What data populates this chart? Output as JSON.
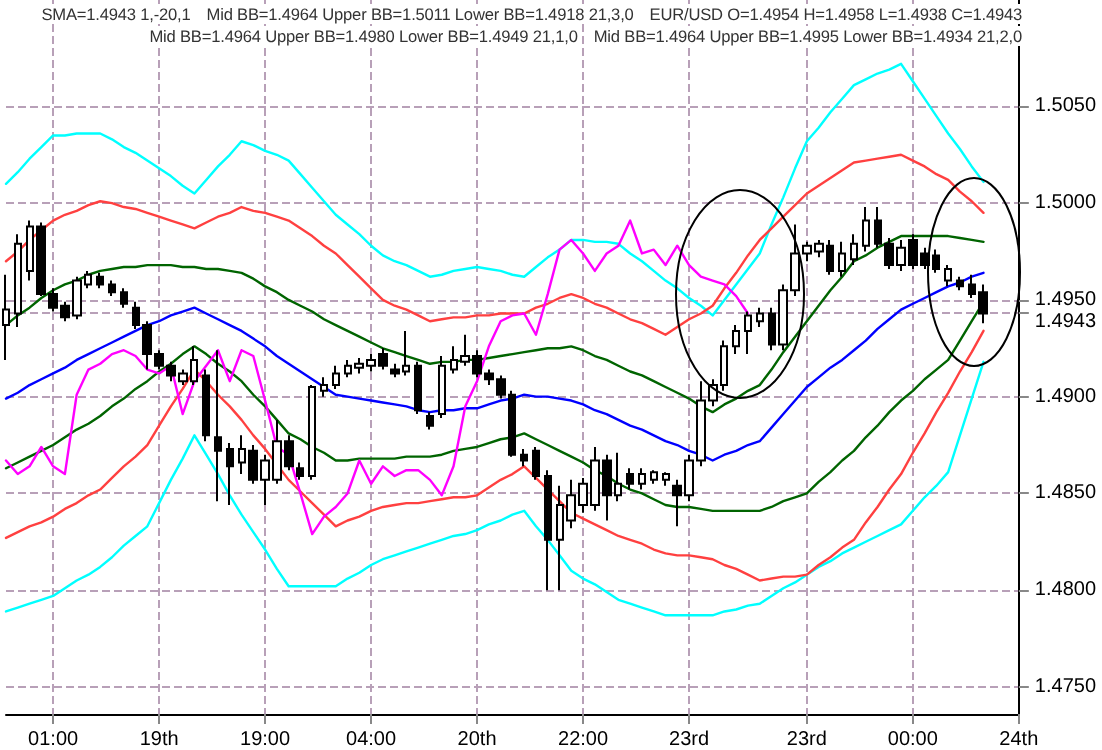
{
  "chart_data": {
    "type": "candlestick",
    "annotations": [
      "SMA=1.4943  1,-20,1",
      "Mid BB=1.4964 Upper BB=1.5011 Lower BB=1.4918  21,3,0",
      "EUR/USD O=1.4954 H=1.4958 L=1.4938 C=1.4943",
      "Mid BB=1.4964 Upper BB=1.4980 Lower BB=1.4949  21,1,0",
      "Mid BB=1.4964 Upper BB=1.4995 Lower BB=1.4934  21,2,0"
    ],
    "categories": [
      null,
      null,
      null,
      null,
      "01:00",
      null,
      null,
      null,
      null,
      null,
      null,
      null,
      null,
      "19th",
      null,
      null,
      null,
      null,
      null,
      null,
      null,
      null,
      "19:00",
      null,
      null,
      null,
      null,
      null,
      null,
      null,
      null,
      "04:00",
      null,
      null,
      null,
      null,
      null,
      null,
      null,
      null,
      "20th",
      null,
      null,
      null,
      null,
      null,
      null,
      null,
      null,
      "22:00",
      null,
      null,
      null,
      null,
      null,
      null,
      null,
      null,
      "23rd",
      null,
      null,
      null,
      null,
      null,
      null,
      null,
      null,
      null,
      "23rd",
      null,
      null,
      null,
      null,
      null,
      null,
      null,
      null,
      "00:00",
      null,
      null,
      null,
      null,
      null,
      null,
      null,
      null,
      "24th"
    ],
    "ohlc": [
      [
        1.4937,
        1.4963,
        1.4919,
        1.4945
      ],
      [
        1.4943,
        1.4984,
        1.4936,
        1.4979
      ],
      [
        1.4965,
        1.4991,
        1.496,
        1.4988
      ],
      [
        1.4988,
        1.499,
        1.4952,
        1.4953
      ],
      [
        1.4953,
        1.4956,
        1.4944,
        1.4946
      ],
      [
        1.4947,
        1.4949,
        1.4939,
        1.4941
      ],
      [
        1.4942,
        1.4962,
        1.494,
        1.496
      ],
      [
        1.4958,
        1.4965,
        1.4956,
        1.4963
      ],
      [
        1.4962,
        1.4964,
        1.4956,
        1.4958
      ],
      [
        1.4958,
        1.496,
        1.4952,
        1.4954
      ],
      [
        1.4954,
        1.4956,
        1.4946,
        1.4948
      ],
      [
        1.4946,
        1.4949,
        1.4935,
        1.4937
      ],
      [
        1.4937,
        1.4939,
        1.4914,
        1.4922
      ],
      [
        1.4922,
        1.4924,
        1.4914,
        1.4916
      ],
      [
        1.4916,
        1.4918,
        1.4908,
        1.4911
      ],
      [
        1.4908,
        1.4914,
        1.4906,
        1.4912
      ],
      [
        1.4908,
        1.4926,
        1.4906,
        1.4919
      ],
      [
        1.4911,
        1.4914,
        1.4877,
        1.488
      ],
      [
        1.4879,
        1.4924,
        1.4846,
        1.4872
      ],
      [
        1.4873,
        1.4876,
        1.4844,
        1.4864
      ],
      [
        1.4866,
        1.488,
        1.486,
        1.4873
      ],
      [
        1.4872,
        1.4875,
        1.4855,
        1.4857
      ],
      [
        1.4857,
        1.487,
        1.4844,
        1.4867
      ],
      [
        1.4857,
        1.4888,
        1.4855,
        1.4877
      ],
      [
        1.4877,
        1.488,
        1.4862,
        1.4864
      ],
      [
        1.4863,
        1.4866,
        1.4857,
        1.4859
      ],
      [
        1.4859,
        1.4906,
        1.4857,
        1.4905
      ],
      [
        1.4903,
        1.491,
        1.49,
        1.4906
      ],
      [
        1.4906,
        1.4916,
        1.4904,
        1.4912
      ],
      [
        1.4912,
        1.4919,
        1.491,
        1.4916
      ],
      [
        1.4915,
        1.492,
        1.4912,
        1.4917
      ],
      [
        1.4916,
        1.4922,
        1.4913,
        1.4919
      ],
      [
        1.4922,
        1.4925,
        1.4914,
        1.4916
      ],
      [
        1.4914,
        1.4917,
        1.491,
        1.4912
      ],
      [
        1.4913,
        1.4934,
        1.4911,
        1.4916
      ],
      [
        1.4916,
        1.4918,
        1.4891,
        1.4893
      ],
      [
        1.489,
        1.4892,
        1.4883,
        1.4885
      ],
      [
        1.4891,
        1.4921,
        1.4889,
        1.4916
      ],
      [
        1.4914,
        1.4926,
        1.4912,
        1.4919
      ],
      [
        1.4918,
        1.4932,
        1.4916,
        1.4921
      ],
      [
        1.4921,
        1.4924,
        1.491,
        1.4912
      ],
      [
        1.4912,
        1.4914,
        1.4906,
        1.4909
      ],
      [
        1.4909,
        1.4911,
        1.4899,
        1.4901
      ],
      [
        1.4901,
        1.4903,
        1.4869,
        1.487
      ],
      [
        1.487,
        1.4873,
        1.4864,
        1.4867
      ],
      [
        1.4872,
        1.4874,
        1.4857,
        1.4859
      ],
      [
        1.4859,
        1.4862,
        1.48,
        1.4826
      ],
      [
        1.4826,
        1.4854,
        1.48,
        1.4844
      ],
      [
        1.4836,
        1.4857,
        1.4832,
        1.4849
      ],
      [
        1.4844,
        1.4858,
        1.484,
        1.4855
      ],
      [
        1.4844,
        1.4874,
        1.4841,
        1.4867
      ],
      [
        1.4867,
        1.487,
        1.4836,
        1.4849
      ],
      [
        1.4849,
        1.4871,
        1.4846,
        1.4855
      ],
      [
        1.486,
        1.4863,
        1.4852,
        1.4855
      ],
      [
        1.4855,
        1.4863,
        1.4852,
        1.486
      ],
      [
        1.4857,
        1.4862,
        1.4855,
        1.4861
      ],
      [
        1.4857,
        1.4861,
        1.4854,
        1.486
      ],
      [
        1.4854,
        1.4857,
        1.4833,
        1.4849
      ],
      [
        1.4849,
        1.487,
        1.4846,
        1.4867
      ],
      [
        1.4867,
        1.4908,
        1.4864,
        1.4898
      ],
      [
        1.4898,
        1.4909,
        1.4895,
        1.4906
      ],
      [
        1.4906,
        1.4929,
        1.4903,
        1.4926
      ],
      [
        1.4926,
        1.4937,
        1.4922,
        1.4934
      ],
      [
        1.4934,
        1.4944,
        1.4922,
        1.4942
      ],
      [
        1.4939,
        1.4946,
        1.4936,
        1.4943
      ],
      [
        1.4943,
        1.4946,
        1.4924,
        1.4927
      ],
      [
        1.4927,
        1.4958,
        1.4924,
        1.4955
      ],
      [
        1.4955,
        1.4989,
        1.4952,
        1.4974
      ],
      [
        1.4974,
        1.498,
        1.497,
        1.4978
      ],
      [
        1.4975,
        1.4981,
        1.4972,
        1.4979
      ],
      [
        1.4978,
        1.4981,
        1.4963,
        1.4965
      ],
      [
        1.4965,
        1.498,
        1.4962,
        1.4974
      ],
      [
        1.4971,
        1.4984,
        1.4968,
        1.4979
      ],
      [
        1.4978,
        1.4998,
        1.4975,
        1.4991
      ],
      [
        1.4991,
        1.4998,
        1.4977,
        1.4979
      ],
      [
        1.4979,
        1.4982,
        1.4966,
        1.4968
      ],
      [
        1.4968,
        1.4981,
        1.4965,
        1.4977
      ],
      [
        1.4981,
        1.4984,
        1.4966,
        1.4968
      ],
      [
        1.4974,
        1.4977,
        1.4966,
        1.4968
      ],
      [
        1.4973,
        1.4976,
        1.4964,
        1.4966
      ],
      [
        1.496,
        1.4968,
        1.4957,
        1.4966
      ],
      [
        1.496,
        1.4962,
        1.4955,
        1.4957
      ],
      [
        1.4958,
        1.4963,
        1.4951,
        1.4953
      ],
      [
        1.4954,
        1.4958,
        1.4938,
        1.4943
      ],
      null,
      null,
      null
    ],
    "series": [
      {
        "type": "line",
        "color": "#00ffff",
        "values": [
          1.501,
          1.5016,
          1.5023,
          1.5029,
          1.5035,
          1.5035,
          1.5036,
          1.5036,
          1.5036,
          1.5033,
          1.5029,
          1.5026,
          1.5022,
          1.5018,
          1.5014,
          1.5009,
          1.5005,
          1.5012,
          1.5019,
          1.5025,
          1.5032,
          1.503,
          1.5027,
          1.5025,
          1.5022,
          1.5015,
          1.5008,
          1.5001,
          1.4994,
          1.4989,
          1.4984,
          1.4978,
          1.4973,
          1.497,
          1.4968,
          1.4965,
          1.4962,
          1.4963,
          1.4965,
          1.4966,
          1.4967,
          1.4966,
          1.4965,
          1.4963,
          1.4962,
          1.4967,
          1.4972,
          1.4976,
          1.4981,
          1.4981,
          1.498,
          1.498,
          1.4979,
          1.4974,
          1.497,
          1.4965,
          1.496,
          1.4956,
          1.4951,
          1.4947,
          1.4942,
          1.495,
          1.4958,
          1.4966,
          1.4974,
          1.4989,
          1.5003,
          1.5018,
          1.5032,
          1.5039,
          1.5047,
          1.5054,
          1.5061,
          1.5064,
          1.5067,
          1.5069,
          1.5072,
          1.5063,
          1.5054,
          1.5045,
          1.5036,
          1.5028,
          1.5019,
          1.5011,
          null,
          null,
          null
        ]
      },
      {
        "type": "line",
        "color": "#00ffff",
        "values": [
          1.4789,
          1.4791,
          1.4793,
          1.4795,
          1.4797,
          1.4801,
          1.4805,
          1.4808,
          1.4812,
          1.4817,
          1.4823,
          1.4828,
          1.4833,
          1.4845,
          1.4857,
          1.4868,
          1.488,
          1.487,
          1.486,
          1.4849,
          1.4839,
          1.483,
          1.4821,
          1.4811,
          1.4802,
          1.4802,
          1.4802,
          1.4802,
          1.4802,
          1.4806,
          1.4809,
          1.4813,
          1.4816,
          1.4818,
          1.482,
          1.4822,
          1.4824,
          1.4826,
          1.4828,
          1.4829,
          1.4831,
          1.4834,
          1.4836,
          1.4839,
          1.4841,
          1.4833,
          1.4826,
          1.4818,
          1.481,
          1.4806,
          1.4803,
          1.4799,
          1.4795,
          1.4793,
          1.4791,
          1.4789,
          1.4787,
          1.4787,
          1.4787,
          1.4787,
          1.4787,
          1.4789,
          1.479,
          1.4792,
          1.4793,
          1.4797,
          1.4801,
          1.4804,
          1.4808,
          1.4812,
          1.4815,
          1.4819,
          1.4822,
          1.4825,
          1.4828,
          1.4831,
          1.4834,
          1.4841,
          1.4848,
          1.4854,
          1.4861,
          1.488,
          1.4899,
          1.4918,
          null,
          null,
          null
        ]
      },
      {
        "type": "line",
        "color": "#ff4040",
        "values": [
          1.497,
          1.4975,
          1.4981,
          1.4986,
          1.4991,
          1.4994,
          1.4996,
          1.4999,
          1.5001,
          1.5,
          1.4998,
          1.4997,
          1.4995,
          1.4993,
          1.4991,
          1.4989,
          1.4987,
          1.499,
          1.4993,
          1.4995,
          1.4998,
          1.4996,
          1.4995,
          1.4993,
          1.4991,
          1.4987,
          1.4983,
          1.4978,
          1.4974,
          1.4968,
          1.4962,
          1.4956,
          1.495,
          1.4947,
          1.4945,
          1.4942,
          1.4939,
          1.494,
          1.4941,
          1.4941,
          1.4942,
          1.4942,
          1.4943,
          1.4943,
          1.4943,
          1.4946,
          1.4948,
          1.4951,
          1.4953,
          1.4951,
          1.4948,
          1.4946,
          1.4943,
          1.494,
          1.4938,
          1.4935,
          1.4932,
          1.4936,
          1.494,
          1.4943,
          1.4947,
          1.4956,
          1.4964,
          1.4973,
          1.4981,
          1.4987,
          1.4993,
          1.4999,
          1.5005,
          1.5009,
          1.5013,
          1.5017,
          1.5021,
          1.5022,
          1.5023,
          1.5024,
          1.5025,
          1.5022,
          1.5019,
          1.5015,
          1.5012,
          1.5006,
          1.5001,
          1.4995,
          null,
          null,
          null
        ]
      },
      {
        "type": "line",
        "color": "#ff4040",
        "values": [
          1.4827,
          1.483,
          1.4833,
          1.4835,
          1.4838,
          1.4842,
          1.4845,
          1.4849,
          1.4852,
          1.4858,
          1.4864,
          1.4869,
          1.4875,
          1.4885,
          1.4895,
          1.4904,
          1.4914,
          1.4908,
          1.4901,
          1.4895,
          1.4888,
          1.488,
          1.4873,
          1.4865,
          1.4857,
          1.4851,
          1.4845,
          1.4839,
          1.4833,
          1.4836,
          1.4838,
          1.4841,
          1.4843,
          1.4844,
          1.4845,
          1.4845,
          1.4846,
          1.4847,
          1.4848,
          1.4848,
          1.4849,
          1.4853,
          1.4857,
          1.486,
          1.4864,
          1.4858,
          1.4852,
          1.4846,
          1.484,
          1.4837,
          1.4834,
          1.4831,
          1.4828,
          1.4826,
          1.4824,
          1.4821,
          1.4819,
          1.4818,
          1.4818,
          1.4817,
          1.4816,
          1.4813,
          1.4811,
          1.4808,
          1.4805,
          1.4806,
          1.4807,
          1.4807,
          1.4808,
          1.4813,
          1.4817,
          1.4822,
          1.4826,
          1.4835,
          1.4843,
          1.4852,
          1.486,
          1.4871,
          1.4881,
          1.4892,
          1.4902,
          1.4913,
          1.4923,
          1.4934,
          null,
          null,
          null
        ]
      },
      {
        "type": "line",
        "color": "#006400",
        "values": [
          1.4937,
          1.4942,
          1.4946,
          1.4951,
          1.4955,
          1.4958,
          1.496,
          1.4963,
          1.4965,
          1.4966,
          1.4967,
          1.4967,
          1.4968,
          1.4968,
          1.4968,
          1.4967,
          1.4967,
          1.4966,
          1.4966,
          1.4965,
          1.4964,
          1.4961,
          1.4957,
          1.4954,
          1.495,
          1.4947,
          1.4944,
          1.494,
          1.4937,
          1.4934,
          1.4931,
          1.4928,
          1.4925,
          1.4923,
          1.4921,
          1.4919,
          1.4917,
          1.4918,
          1.4918,
          1.4919,
          1.4919,
          1.492,
          1.4921,
          1.4922,
          1.4923,
          1.4924,
          1.4925,
          1.4925,
          1.4926,
          1.4924,
          1.4921,
          1.4919,
          1.4916,
          1.4913,
          1.4911,
          1.4908,
          1.4905,
          1.4902,
          1.4899,
          1.4895,
          1.4892,
          1.4896,
          1.4899,
          1.4903,
          1.4906,
          1.4914,
          1.4923,
          1.4931,
          1.4939,
          1.4947,
          1.4955,
          1.4962,
          1.497,
          1.4973,
          1.4977,
          1.498,
          1.4983,
          1.4983,
          1.4983,
          1.4983,
          1.4983,
          1.4982,
          1.4981,
          1.498,
          null,
          null,
          null
        ]
      },
      {
        "type": "line",
        "color": "#006400",
        "values": [
          1.4863,
          1.4866,
          1.4869,
          1.4872,
          1.4875,
          1.4879,
          1.4883,
          1.4886,
          1.489,
          1.4895,
          1.4899,
          1.4904,
          1.4908,
          1.4913,
          1.4917,
          1.4922,
          1.4926,
          1.4922,
          1.4917,
          1.4913,
          1.4908,
          1.4901,
          1.4895,
          1.4888,
          1.4881,
          1.4878,
          1.4874,
          1.4871,
          1.4867,
          1.4867,
          1.4868,
          1.4868,
          1.4868,
          1.4868,
          1.4869,
          1.4869,
          1.4869,
          1.487,
          1.4872,
          1.4873,
          1.4874,
          1.4876,
          1.4878,
          1.4879,
          1.4881,
          1.4878,
          1.4875,
          1.4872,
          1.4869,
          1.4866,
          1.4862,
          1.4859,
          1.4855,
          1.4852,
          1.485,
          1.4847,
          1.4844,
          1.4843,
          1.4843,
          1.4842,
          1.4841,
          1.4841,
          1.4841,
          1.4841,
          1.4841,
          1.4843,
          1.4846,
          1.4848,
          1.485,
          1.4856,
          1.4861,
          1.4867,
          1.4872,
          1.4879,
          1.4885,
          1.4892,
          1.4898,
          1.4903,
          1.4909,
          1.4914,
          1.4919,
          1.4929,
          1.4939,
          1.4949,
          null,
          null,
          null
        ]
      },
      {
        "type": "line",
        "color": "#0000ff",
        "values": [
          1.4899,
          1.4902,
          1.4906,
          1.4909,
          1.4912,
          1.4915,
          1.4919,
          1.4922,
          1.4925,
          1.4928,
          1.4931,
          1.4934,
          1.4937,
          1.4939,
          1.4942,
          1.4944,
          1.4946,
          1.4943,
          1.494,
          1.4937,
          1.4934,
          1.493,
          1.4926,
          1.4921,
          1.4917,
          1.4913,
          1.4909,
          1.4905,
          1.4901,
          1.49,
          1.4899,
          1.4898,
          1.4897,
          1.4896,
          1.4895,
          1.4893,
          1.4892,
          1.4893,
          1.4893,
          1.4894,
          1.4894,
          1.4896,
          1.4898,
          1.4899,
          1.4901,
          1.49,
          1.49,
          1.4899,
          1.4898,
          1.4896,
          1.4893,
          1.4891,
          1.4888,
          1.4885,
          1.4883,
          1.488,
          1.4877,
          1.4875,
          1.4872,
          1.487,
          1.4867,
          1.487,
          1.4872,
          1.4875,
          1.4877,
          1.4884,
          1.4891,
          1.4898,
          1.4905,
          1.491,
          1.4915,
          1.4919,
          1.4924,
          1.4929,
          1.4935,
          1.494,
          1.4945,
          1.4948,
          1.4951,
          1.4954,
          1.4957,
          1.4959,
          1.4962,
          1.4964,
          null,
          null,
          null
        ]
      },
      {
        "type": "line",
        "color": "#ff00ff",
        "values": [
          1.4867,
          1.486,
          1.4864,
          1.4874,
          1.4864,
          1.486,
          1.4901,
          1.4914,
          1.4917,
          1.4922,
          1.4924,
          1.4921,
          1.4914,
          1.4912,
          1.4916,
          1.4891,
          1.4908,
          1.4916,
          1.4924,
          1.4908,
          1.4924,
          1.4921,
          1.4898,
          1.4874,
          1.487,
          1.485,
          1.4829,
          1.4838,
          1.4843,
          1.485,
          1.4867,
          1.4855,
          1.4864,
          1.4859,
          1.4862,
          1.4862,
          1.4857,
          1.4849,
          1.4864,
          1.4895,
          1.4908,
          1.4926,
          1.4939,
          1.4942,
          1.4943,
          1.4932,
          1.4953,
          1.4976,
          1.4981,
          1.4974,
          1.4965,
          1.4974,
          1.4978,
          1.4991,
          1.4974,
          1.4976,
          1.4968,
          1.4978,
          1.4968,
          1.4962,
          1.496,
          1.4958,
          1.4952,
          1.4943,
          null,
          null,
          null,
          null,
          null,
          null,
          null,
          null,
          null,
          null,
          null,
          null,
          null,
          null,
          null,
          null,
          null,
          null,
          null,
          null,
          null,
          null,
          null
        ]
      }
    ],
    "ylim": [
      1.4736,
      1.5105
    ],
    "yticks": [
      {
        "value": 1.475,
        "label": "1.4750"
      },
      {
        "value": 1.48,
        "label": "1.4800"
      },
      {
        "value": 1.485,
        "label": "1.4850"
      },
      {
        "value": 1.49,
        "label": "1.4900"
      },
      {
        "value": 1.4943,
        "label": "1.4943"
      },
      {
        "value": 1.495,
        "label": "1.4950"
      },
      {
        "value": 1.5,
        "label": "1.5000"
      },
      {
        "value": 1.505,
        "label": "1.5050"
      }
    ],
    "grid": true,
    "marker": "none",
    "line_style": "solid"
  }
}
